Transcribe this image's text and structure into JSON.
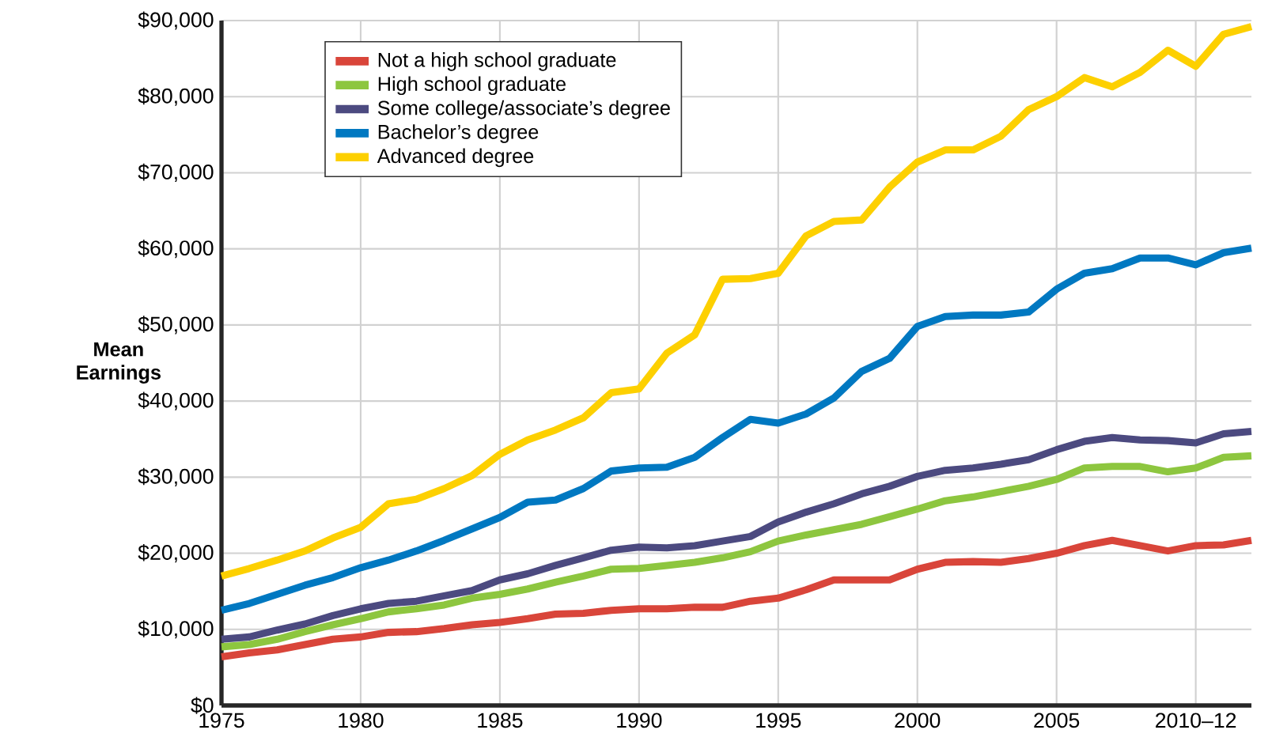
{
  "chart_data": {
    "type": "line",
    "ylabel": "Mean Earnings",
    "x": [
      1975,
      1976,
      1977,
      1978,
      1979,
      1980,
      1981,
      1982,
      1983,
      1984,
      1985,
      1986,
      1987,
      1988,
      1989,
      1990,
      1991,
      1992,
      1993,
      1994,
      1995,
      1996,
      1997,
      1998,
      1999,
      2000,
      2001,
      2002,
      2003,
      2004,
      2005,
      2006,
      2007,
      2008,
      2009,
      2010,
      2011,
      2012
    ],
    "series": [
      {
        "name": "Not a high school graduate",
        "color": "#d9453a",
        "values": [
          6400,
          6900,
          7300,
          8000,
          8700,
          9000,
          9600,
          9700,
          10100,
          10600,
          10900,
          11400,
          12000,
          12100,
          12500,
          12700,
          12700,
          12900,
          12900,
          13700,
          14100,
          15200,
          16500,
          16500,
          16500,
          17900,
          18800,
          18900,
          18800,
          19300,
          20000,
          21000,
          21700,
          21000,
          20300,
          21000,
          21100,
          21700
        ]
      },
      {
        "name": "High school graduate",
        "color": "#8dc63f",
        "values": [
          7700,
          8000,
          8700,
          9700,
          10600,
          11400,
          12300,
          12700,
          13200,
          14100,
          14600,
          15300,
          16200,
          17000,
          17900,
          18000,
          18400,
          18800,
          19400,
          20200,
          21600,
          22400,
          23100,
          23800,
          24800,
          25800,
          26900,
          27400,
          28100,
          28800,
          29700,
          31200,
          31400,
          31400,
          30700,
          31200,
          32600,
          32800
        ]
      },
      {
        "name": "Some college/associate’s degree",
        "color": "#4c4a80",
        "values": [
          8700,
          9000,
          9900,
          10700,
          11800,
          12700,
          13400,
          13700,
          14400,
          15100,
          16500,
          17300,
          18400,
          19400,
          20400,
          20800,
          20700,
          21000,
          21600,
          22200,
          24100,
          25400,
          26500,
          27800,
          28800,
          30100,
          30900,
          31200,
          31700,
          32300,
          33600,
          34700,
          35200,
          34900,
          34800,
          34500,
          35700,
          36000
        ]
      },
      {
        "name": "Bachelor’s degree",
        "color": "#0078c1",
        "values": [
          12500,
          13400,
          14600,
          15800,
          16800,
          18100,
          19100,
          20300,
          21700,
          23200,
          24700,
          26700,
          27000,
          28500,
          30800,
          31200,
          31300,
          32600,
          35200,
          37600,
          37100,
          38300,
          40400,
          43900,
          45600,
          49800,
          51100,
          51300,
          51300,
          51700,
          54700,
          56800,
          57400,
          58800,
          58800,
          57900,
          59500,
          60100
        ]
      },
      {
        "name": "Advanced degree",
        "color": "#fdd000",
        "values": [
          17000,
          18000,
          19100,
          20300,
          22000,
          23400,
          26500,
          27100,
          28500,
          30200,
          33000,
          34900,
          36200,
          37800,
          41100,
          41600,
          46300,
          48700,
          56000,
          56100,
          56800,
          61700,
          63600,
          63800,
          68100,
          71400,
          73000,
          73000,
          74800,
          78300,
          80000,
          82500,
          81300,
          83200,
          86100,
          84000,
          88200,
          89200
        ]
      }
    ],
    "xlim": [
      1975,
      2012
    ],
    "xticks": [
      1975,
      1980,
      1985,
      1990,
      1995,
      2000,
      2005,
      {
        "value": 2010,
        "label": "2010–12"
      }
    ],
    "ylim": [
      0,
      90000
    ],
    "yticks": [
      {
        "value": 0,
        "label": "$0"
      },
      {
        "value": 10000,
        "label": "$10,000"
      },
      {
        "value": 20000,
        "label": "$20,000"
      },
      {
        "value": 30000,
        "label": "$30,000"
      },
      {
        "value": 40000,
        "label": "$40,000"
      },
      {
        "value": 50000,
        "label": "$50,000"
      },
      {
        "value": 60000,
        "label": "$60,000"
      },
      {
        "value": 70000,
        "label": "$70,000"
      },
      {
        "value": 80000,
        "label": "$80,000"
      },
      {
        "value": 90000,
        "label": "$90,000"
      }
    ],
    "grid": true,
    "legend": "top left",
    "marker": "none",
    "line_style": "solid"
  }
}
